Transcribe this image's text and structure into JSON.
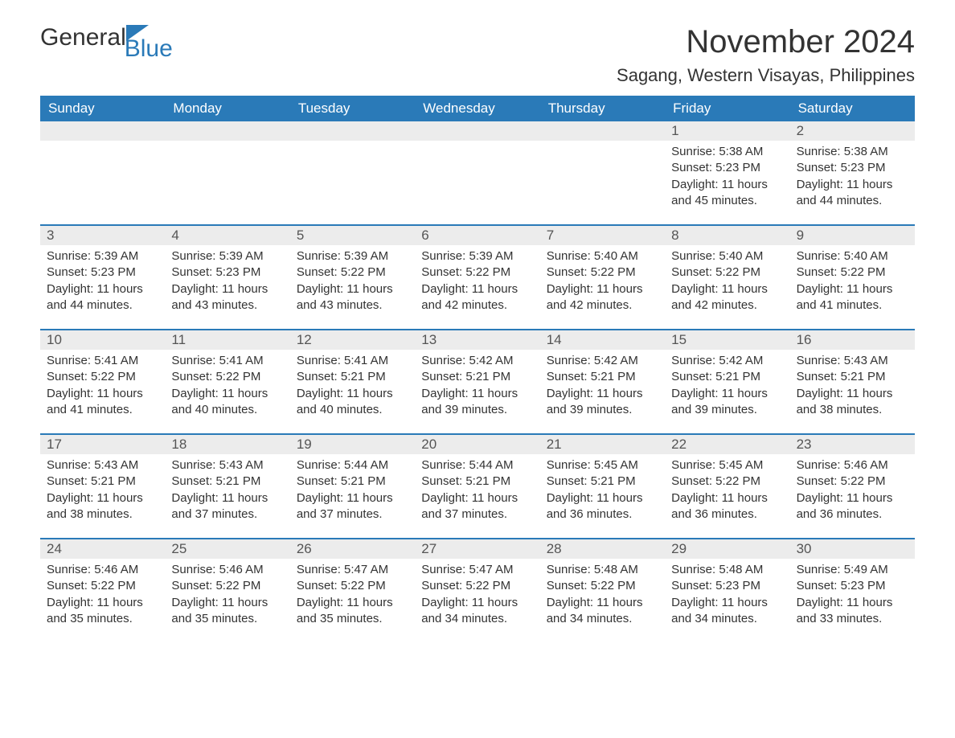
{
  "logo": {
    "word1": "General",
    "word2": "Blue"
  },
  "title": "November 2024",
  "location": "Sagang, Western Visayas, Philippines",
  "colors": {
    "header_bg": "#2a7ab8",
    "header_text": "#ffffff",
    "daynum_bg": "#ececec",
    "border": "#2a7ab8",
    "body_text": "#333333",
    "page_bg": "#ffffff"
  },
  "typography": {
    "month_title_pt": 40,
    "location_pt": 22,
    "weekday_pt": 17,
    "daynum_pt": 17,
    "body_pt": 15
  },
  "weekdays": [
    "Sunday",
    "Monday",
    "Tuesday",
    "Wednesday",
    "Thursday",
    "Friday",
    "Saturday"
  ],
  "weeks": [
    [
      null,
      null,
      null,
      null,
      null,
      {
        "n": "1",
        "sunrise": "5:38 AM",
        "sunset": "5:23 PM",
        "daylight": "11 hours and 45 minutes."
      },
      {
        "n": "2",
        "sunrise": "5:38 AM",
        "sunset": "5:23 PM",
        "daylight": "11 hours and 44 minutes."
      }
    ],
    [
      {
        "n": "3",
        "sunrise": "5:39 AM",
        "sunset": "5:23 PM",
        "daylight": "11 hours and 44 minutes."
      },
      {
        "n": "4",
        "sunrise": "5:39 AM",
        "sunset": "5:23 PM",
        "daylight": "11 hours and 43 minutes."
      },
      {
        "n": "5",
        "sunrise": "5:39 AM",
        "sunset": "5:22 PM",
        "daylight": "11 hours and 43 minutes."
      },
      {
        "n": "6",
        "sunrise": "5:39 AM",
        "sunset": "5:22 PM",
        "daylight": "11 hours and 42 minutes."
      },
      {
        "n": "7",
        "sunrise": "5:40 AM",
        "sunset": "5:22 PM",
        "daylight": "11 hours and 42 minutes."
      },
      {
        "n": "8",
        "sunrise": "5:40 AM",
        "sunset": "5:22 PM",
        "daylight": "11 hours and 42 minutes."
      },
      {
        "n": "9",
        "sunrise": "5:40 AM",
        "sunset": "5:22 PM",
        "daylight": "11 hours and 41 minutes."
      }
    ],
    [
      {
        "n": "10",
        "sunrise": "5:41 AM",
        "sunset": "5:22 PM",
        "daylight": "11 hours and 41 minutes."
      },
      {
        "n": "11",
        "sunrise": "5:41 AM",
        "sunset": "5:22 PM",
        "daylight": "11 hours and 40 minutes."
      },
      {
        "n": "12",
        "sunrise": "5:41 AM",
        "sunset": "5:21 PM",
        "daylight": "11 hours and 40 minutes."
      },
      {
        "n": "13",
        "sunrise": "5:42 AM",
        "sunset": "5:21 PM",
        "daylight": "11 hours and 39 minutes."
      },
      {
        "n": "14",
        "sunrise": "5:42 AM",
        "sunset": "5:21 PM",
        "daylight": "11 hours and 39 minutes."
      },
      {
        "n": "15",
        "sunrise": "5:42 AM",
        "sunset": "5:21 PM",
        "daylight": "11 hours and 39 minutes."
      },
      {
        "n": "16",
        "sunrise": "5:43 AM",
        "sunset": "5:21 PM",
        "daylight": "11 hours and 38 minutes."
      }
    ],
    [
      {
        "n": "17",
        "sunrise": "5:43 AM",
        "sunset": "5:21 PM",
        "daylight": "11 hours and 38 minutes."
      },
      {
        "n": "18",
        "sunrise": "5:43 AM",
        "sunset": "5:21 PM",
        "daylight": "11 hours and 37 minutes."
      },
      {
        "n": "19",
        "sunrise": "5:44 AM",
        "sunset": "5:21 PM",
        "daylight": "11 hours and 37 minutes."
      },
      {
        "n": "20",
        "sunrise": "5:44 AM",
        "sunset": "5:21 PM",
        "daylight": "11 hours and 37 minutes."
      },
      {
        "n": "21",
        "sunrise": "5:45 AM",
        "sunset": "5:21 PM",
        "daylight": "11 hours and 36 minutes."
      },
      {
        "n": "22",
        "sunrise": "5:45 AM",
        "sunset": "5:22 PM",
        "daylight": "11 hours and 36 minutes."
      },
      {
        "n": "23",
        "sunrise": "5:46 AM",
        "sunset": "5:22 PM",
        "daylight": "11 hours and 36 minutes."
      }
    ],
    [
      {
        "n": "24",
        "sunrise": "5:46 AM",
        "sunset": "5:22 PM",
        "daylight": "11 hours and 35 minutes."
      },
      {
        "n": "25",
        "sunrise": "5:46 AM",
        "sunset": "5:22 PM",
        "daylight": "11 hours and 35 minutes."
      },
      {
        "n": "26",
        "sunrise": "5:47 AM",
        "sunset": "5:22 PM",
        "daylight": "11 hours and 35 minutes."
      },
      {
        "n": "27",
        "sunrise": "5:47 AM",
        "sunset": "5:22 PM",
        "daylight": "11 hours and 34 minutes."
      },
      {
        "n": "28",
        "sunrise": "5:48 AM",
        "sunset": "5:22 PM",
        "daylight": "11 hours and 34 minutes."
      },
      {
        "n": "29",
        "sunrise": "5:48 AM",
        "sunset": "5:23 PM",
        "daylight": "11 hours and 34 minutes."
      },
      {
        "n": "30",
        "sunrise": "5:49 AM",
        "sunset": "5:23 PM",
        "daylight": "11 hours and 33 minutes."
      }
    ]
  ],
  "labels": {
    "sunrise_prefix": "Sunrise: ",
    "sunset_prefix": "Sunset: ",
    "daylight_prefix": "Daylight: "
  }
}
